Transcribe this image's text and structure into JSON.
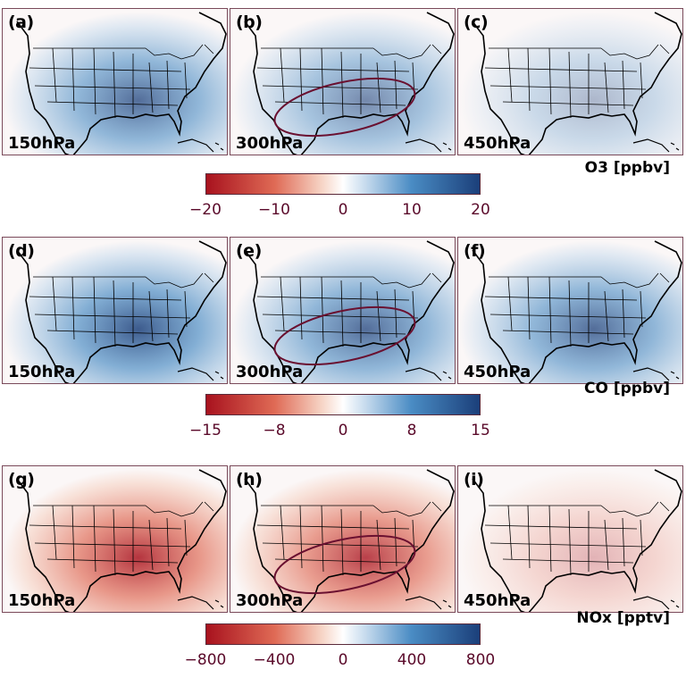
{
  "rows": [
    {
      "species_label": "O3 [ppbv]",
      "cbar_ticks": [
        "−20",
        "−10",
        "0",
        "10",
        "20"
      ],
      "panels": [
        {
          "label": "(a)",
          "level": "150hPa",
          "sign": "blue",
          "intensity": 0.75
        },
        {
          "label": "(b)",
          "level": "300hPa",
          "sign": "blue",
          "intensity": 0.6,
          "ellipse": true
        },
        {
          "label": "(c)",
          "level": "450hPa",
          "sign": "blue",
          "intensity": 0.35
        }
      ]
    },
    {
      "species_label": "CO [ppbv]",
      "cbar_ticks": [
        "−15",
        "−8",
        "0",
        "8",
        "15"
      ],
      "panels": [
        {
          "label": "(d)",
          "level": "150hPa",
          "sign": "blue",
          "intensity": 0.85
        },
        {
          "label": "(e)",
          "level": "300hPa",
          "sign": "blue",
          "intensity": 0.75,
          "ellipse": true
        },
        {
          "label": "(f)",
          "level": "450hPa",
          "sign": "blue",
          "intensity": 0.75
        }
      ]
    },
    {
      "species_label": "NOx [pptv]",
      "cbar_ticks": [
        "−800",
        "−400",
        "0",
        "400",
        "800"
      ],
      "panels": [
        {
          "label": "(g)",
          "level": "150hPa",
          "sign": "red",
          "intensity": 0.85
        },
        {
          "label": "(h)",
          "level": "300hPa",
          "sign": "red",
          "intensity": 0.8,
          "ellipse": true
        },
        {
          "label": "(i)",
          "level": "450hPa",
          "sign": "red",
          "intensity": 0.3
        }
      ]
    }
  ],
  "colors": {
    "blue_dark": "#1b3f7a",
    "blue_mid": "#4a8cc4",
    "blue_light": "#c8dcee",
    "red_dark": "#a8121e",
    "red_mid": "#df6a55",
    "red_light": "#f6d3c4",
    "ellipse": "#6a1030"
  },
  "chart_data": {
    "type": "heatmap",
    "panels": [
      {
        "id": "(a)",
        "level": "150hPa",
        "species": "O3",
        "units": "ppbv",
        "cmin": -20,
        "cmax": 20
      },
      {
        "id": "(b)",
        "level": "300hPa",
        "species": "O3",
        "units": "ppbv",
        "cmin": -20,
        "cmax": 20
      },
      {
        "id": "(c)",
        "level": "450hPa",
        "species": "O3",
        "units": "ppbv",
        "cmin": -20,
        "cmax": 20
      },
      {
        "id": "(d)",
        "level": "150hPa",
        "species": "CO",
        "units": "ppbv",
        "cmin": -15,
        "cmax": 15
      },
      {
        "id": "(e)",
        "level": "300hPa",
        "species": "CO",
        "units": "ppbv",
        "cmin": -15,
        "cmax": 15
      },
      {
        "id": "(f)",
        "level": "450hPa",
        "species": "CO",
        "units": "ppbv",
        "cmin": -15,
        "cmax": 15
      },
      {
        "id": "(g)",
        "level": "150hPa",
        "species": "NOx",
        "units": "pptv",
        "cmin": -800,
        "cmax": 800
      },
      {
        "id": "(h)",
        "level": "300hPa",
        "species": "NOx",
        "units": "pptv",
        "cmin": -800,
        "cmax": 800
      },
      {
        "id": "(i)",
        "level": "450hPa",
        "species": "NOx",
        "units": "pptv",
        "cmin": -800,
        "cmax": 800
      }
    ],
    "colorbars": [
      {
        "label": "O3 [ppbv]",
        "ticks": [
          -20,
          -10,
          0,
          10,
          20
        ]
      },
      {
        "label": "CO [ppbv]",
        "ticks": [
          -15,
          -8,
          0,
          8,
          15
        ]
      },
      {
        "label": "NOx [pptv]",
        "ticks": [
          -800,
          -400,
          0,
          400,
          800
        ]
      }
    ]
  }
}
